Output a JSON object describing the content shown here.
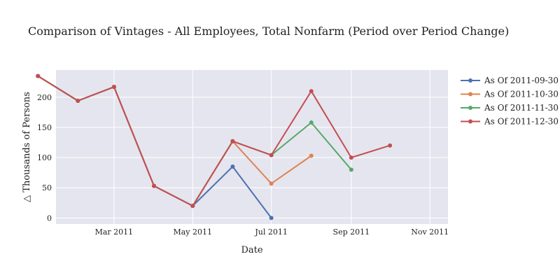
{
  "chart_data": {
    "type": "line",
    "title": "Comparison of Vintages - All Employees, Total Nonfarm (Period over Period Change)",
    "xlabel": "Date",
    "ylabel": "△ Thousands of Persons",
    "xlim": [
      "2011-01-15",
      "2011-11-15"
    ],
    "ylim": [
      -10,
      245
    ],
    "x_ticks": [
      {
        "value": "2011-03-01",
        "label": "Mar 2011"
      },
      {
        "value": "2011-05-01",
        "label": "May 2011"
      },
      {
        "value": "2011-07-01",
        "label": "Jul 2011"
      },
      {
        "value": "2011-09-01",
        "label": "Sep 2011"
      },
      {
        "value": "2011-11-01",
        "label": "Nov 2011"
      }
    ],
    "y_ticks": [
      0,
      50,
      100,
      150,
      200
    ],
    "grid": true,
    "legend_position": "right",
    "series": [
      {
        "name": "As Of 2011-09-30",
        "color": "#4c72b0",
        "points": [
          [
            "2011-01-01",
            235
          ],
          [
            "2011-02-01",
            194
          ],
          [
            "2011-03-01",
            217
          ],
          [
            "2011-04-01",
            53
          ],
          [
            "2011-05-01",
            20
          ],
          [
            "2011-06-01",
            85
          ],
          [
            "2011-07-01",
            0
          ]
        ]
      },
      {
        "name": "As Of 2011-10-30",
        "color": "#dd8452",
        "points": [
          [
            "2011-01-01",
            235
          ],
          [
            "2011-02-01",
            194
          ],
          [
            "2011-03-01",
            217
          ],
          [
            "2011-04-01",
            53
          ],
          [
            "2011-05-01",
            20
          ],
          [
            "2011-06-01",
            127
          ],
          [
            "2011-07-01",
            57
          ],
          [
            "2011-08-01",
            103
          ]
        ]
      },
      {
        "name": "As Of 2011-11-30",
        "color": "#55a868",
        "points": [
          [
            "2011-01-01",
            235
          ],
          [
            "2011-02-01",
            194
          ],
          [
            "2011-03-01",
            217
          ],
          [
            "2011-04-01",
            53
          ],
          [
            "2011-05-01",
            20
          ],
          [
            "2011-06-01",
            127
          ],
          [
            "2011-07-01",
            104
          ],
          [
            "2011-08-01",
            158
          ],
          [
            "2011-09-01",
            80
          ]
        ]
      },
      {
        "name": "As Of 2011-12-30",
        "color": "#c44e52",
        "points": [
          [
            "2011-01-01",
            235
          ],
          [
            "2011-02-01",
            194
          ],
          [
            "2011-03-01",
            217
          ],
          [
            "2011-04-01",
            53
          ],
          [
            "2011-05-01",
            20
          ],
          [
            "2011-06-01",
            127
          ],
          [
            "2011-07-01",
            104
          ],
          [
            "2011-08-01",
            210
          ],
          [
            "2011-09-01",
            100
          ],
          [
            "2011-10-01",
            120
          ]
        ]
      }
    ]
  }
}
